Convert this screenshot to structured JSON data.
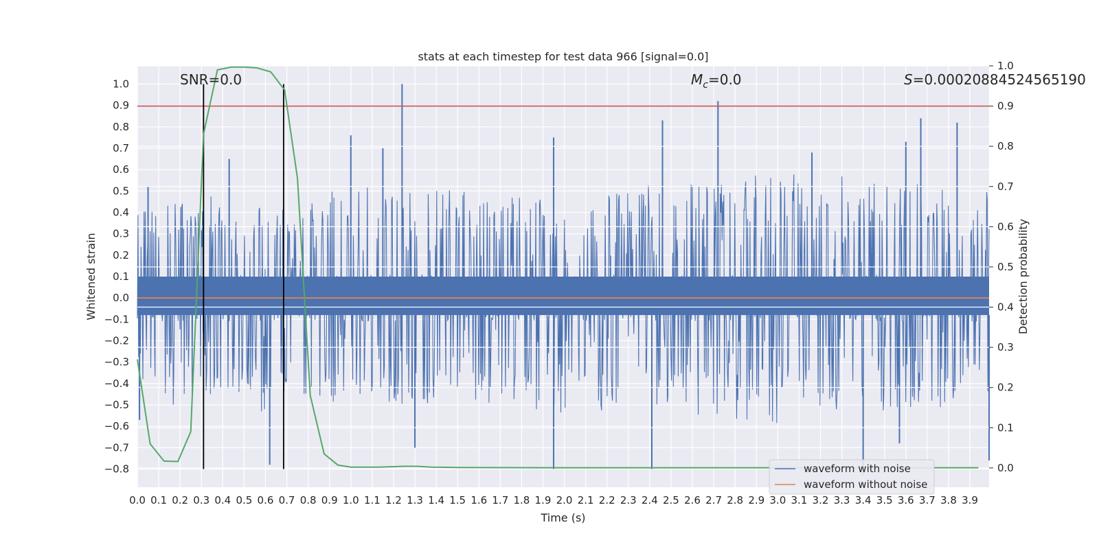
{
  "chart_data": {
    "type": "line",
    "title": "stats at each timestep for test data 966 [signal=0.0]",
    "xlabel": "Time (s)",
    "ylabel": "Whitened strain",
    "y2label": "Detection probability",
    "xlim": [
      0.0,
      3.99
    ],
    "ylim": [
      -0.885,
      1.085
    ],
    "y2lim": [
      -0.048,
      1.0
    ],
    "x_ticks": [
      "0.0",
      "0.1",
      "0.2",
      "0.3",
      "0.4",
      "0.5",
      "0.6",
      "0.7",
      "0.8",
      "0.9",
      "1.0",
      "1.1",
      "1.2",
      "1.3",
      "1.4",
      "1.5",
      "1.6",
      "1.7",
      "1.8",
      "1.9",
      "2.0",
      "2.1",
      "2.2",
      "2.3",
      "2.4",
      "2.5",
      "2.6",
      "2.7",
      "2.8",
      "2.9",
      "3.0",
      "3.1",
      "3.2",
      "3.3",
      "3.4",
      "3.5",
      "3.6",
      "3.7",
      "3.8",
      "3.9"
    ],
    "y_ticks": [
      "1.0",
      "0.9",
      "0.8",
      "0.7",
      "0.6",
      "0.5",
      "0.4",
      "0.3",
      "0.2",
      "0.1",
      "0.0",
      "−0.1",
      "−0.2",
      "−0.3",
      "−0.4",
      "−0.5",
      "−0.6",
      "−0.7",
      "−0.8"
    ],
    "y2_ticks": [
      "1.0",
      "0.9",
      "0.8",
      "0.7",
      "0.6",
      "0.5",
      "0.4",
      "0.3",
      "0.2",
      "0.1",
      "0.0"
    ],
    "grid": true,
    "legend_position": "bottom-right",
    "annotations": {
      "snr": "SNR=0.0",
      "mc": "M",
      "mc_sub": "c",
      "mc_val": "=0.0",
      "s": "S",
      "s_val": "=0.00020884524565190"
    },
    "series": [
      {
        "name": "waveform with noise",
        "color": "#4c72b0",
        "axis": "left",
        "envelope_x": [
          0.0,
          0.2,
          0.4,
          0.6,
          0.8,
          1.0,
          1.5,
          2.0,
          2.5,
          3.0,
          3.5,
          3.99
        ],
        "envelope_upper": [
          0.45,
          0.45,
          0.5,
          0.45,
          0.45,
          0.55,
          0.5,
          0.45,
          0.55,
          0.6,
          0.55,
          0.5
        ],
        "envelope_lower": [
          -0.5,
          -0.5,
          -0.5,
          -0.55,
          -0.45,
          -0.5,
          -0.5,
          -0.55,
          -0.5,
          -0.5,
          -0.55,
          -0.5
        ],
        "peaks": [
          {
            "x": 0.05,
            "y": 0.52
          },
          {
            "x": 0.43,
            "y": 0.65
          },
          {
            "x": 1.0,
            "y": 0.76
          },
          {
            "x": 1.15,
            "y": 0.7
          },
          {
            "x": 1.24,
            "y": 1.0
          },
          {
            "x": 2.46,
            "y": 0.83
          },
          {
            "x": 2.72,
            "y": 0.92
          },
          {
            "x": 3.67,
            "y": 0.84
          },
          {
            "x": 3.84,
            "y": 0.82
          },
          {
            "x": 3.6,
            "y": 0.73
          },
          {
            "x": 1.95,
            "y": 0.75
          },
          {
            "x": 3.16,
            "y": 0.68
          }
        ],
        "troughs": [
          {
            "x": 0.62,
            "y": -0.78
          },
          {
            "x": 1.3,
            "y": -0.7
          },
          {
            "x": 1.95,
            "y": -0.8
          },
          {
            "x": 2.41,
            "y": -0.8
          },
          {
            "x": 3.4,
            "y": -0.83
          },
          {
            "x": 3.57,
            "y": -0.68
          },
          {
            "x": 0.01,
            "y": -0.57
          },
          {
            "x": 3.99,
            "y": -0.76
          }
        ]
      },
      {
        "name": "waveform without noise",
        "color": "#dd8452",
        "axis": "left",
        "x": [
          0.0,
          3.99
        ],
        "y": [
          0.0,
          0.0
        ]
      },
      {
        "name": "detection probability",
        "color": "#55a868",
        "axis": "right",
        "x": [
          0.0,
          0.06,
          0.125,
          0.19,
          0.25,
          0.31,
          0.375,
          0.44,
          0.5,
          0.56,
          0.625,
          0.69,
          0.75,
          0.81,
          0.875,
          0.94,
          1.0,
          1.13,
          1.25,
          1.31,
          1.38,
          1.5,
          2.0,
          2.5,
          3.0,
          3.5,
          3.94
        ],
        "y": [
          0.27,
          0.06,
          0.017,
          0.016,
          0.09,
          0.83,
          0.99,
          0.997,
          0.997,
          0.995,
          0.985,
          0.94,
          0.72,
          0.18,
          0.035,
          0.007,
          0.002,
          0.002,
          0.004,
          0.004,
          0.002,
          0.001,
          0.0005,
          0.0005,
          0.0005,
          0.0005,
          0.0005
        ]
      }
    ],
    "threshold_line": {
      "color": "#c44e52",
      "axis": "right",
      "y": 0.9
    },
    "vertical_markers": {
      "color": "#000000",
      "x": [
        0.31,
        0.685
      ],
      "y_range": [
        -0.8,
        1.0
      ]
    }
  }
}
